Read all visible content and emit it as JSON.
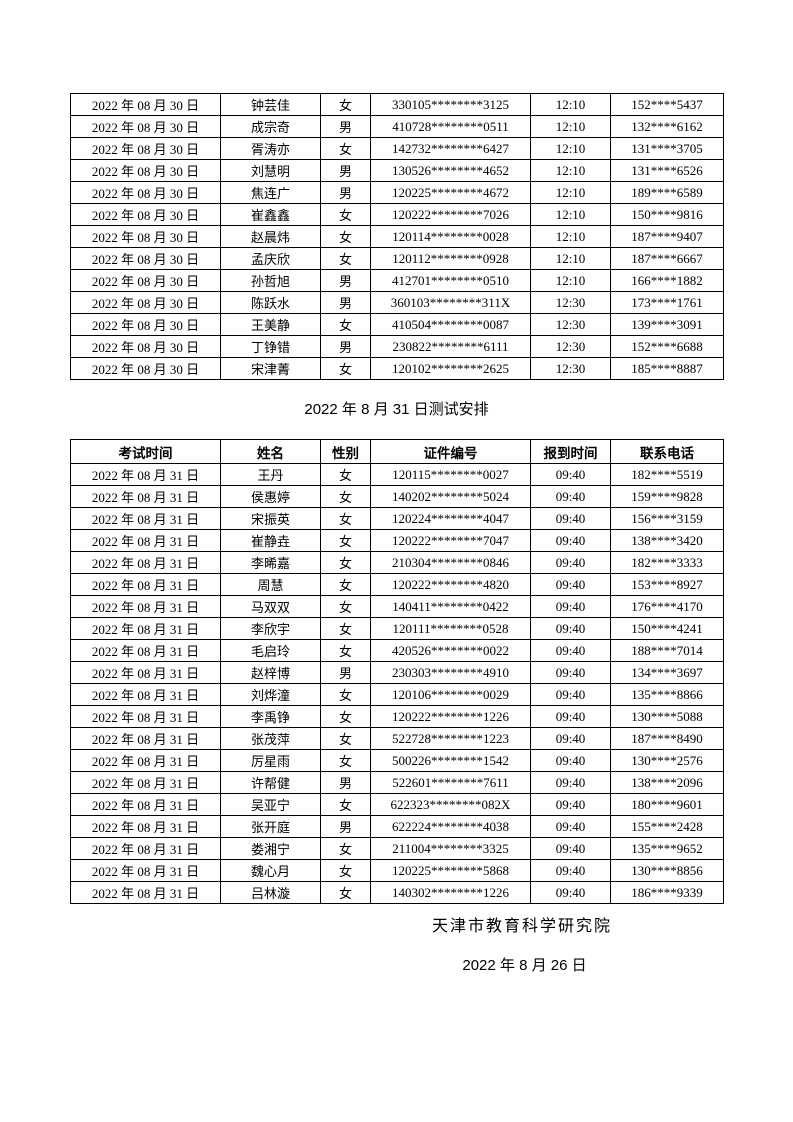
{
  "title": "2022 年 8 月 31 日测试安排",
  "footer": {
    "org": "天津市教育科学研究院",
    "date": "2022 年 8 月 26 日"
  },
  "table_aug30": {
    "rows": [
      {
        "date": "2022 年 08 月 30 日",
        "name": "钟芸佳",
        "gender": "女",
        "id_number": "330105********3125",
        "report_time": "12:10",
        "phone": "152****5437"
      },
      {
        "date": "2022 年 08 月 30 日",
        "name": "成宗奇",
        "gender": "男",
        "id_number": "410728********0511",
        "report_time": "12:10",
        "phone": "132****6162"
      },
      {
        "date": "2022 年 08 月 30 日",
        "name": "胥涛亦",
        "gender": "女",
        "id_number": "142732********6427",
        "report_time": "12:10",
        "phone": "131****3705"
      },
      {
        "date": "2022 年 08 月 30 日",
        "name": "刘慧明",
        "gender": "男",
        "id_number": "130526********4652",
        "report_time": "12:10",
        "phone": "131****6526"
      },
      {
        "date": "2022 年 08 月 30 日",
        "name": "焦连广",
        "gender": "男",
        "id_number": "120225********4672",
        "report_time": "12:10",
        "phone": "189****6589"
      },
      {
        "date": "2022 年 08 月 30 日",
        "name": "崔鑫鑫",
        "gender": "女",
        "id_number": "120222********7026",
        "report_time": "12:10",
        "phone": "150****9816"
      },
      {
        "date": "2022 年 08 月 30 日",
        "name": "赵晨炜",
        "gender": "女",
        "id_number": "120114********0028",
        "report_time": "12:10",
        "phone": "187****9407"
      },
      {
        "date": "2022 年 08 月 30 日",
        "name": "孟庆欣",
        "gender": "女",
        "id_number": "120112********0928",
        "report_time": "12:10",
        "phone": "187****6667"
      },
      {
        "date": "2022 年 08 月 30 日",
        "name": "孙哲旭",
        "gender": "男",
        "id_number": "412701********0510",
        "report_time": "12:10",
        "phone": "166****1882"
      },
      {
        "date": "2022 年 08 月 30 日",
        "name": "陈跃水",
        "gender": "男",
        "id_number": "360103********311X",
        "report_time": "12:30",
        "phone": "173****1761"
      },
      {
        "date": "2022 年 08 月 30 日",
        "name": "王美静",
        "gender": "女",
        "id_number": "410504********0087",
        "report_time": "12:30",
        "phone": "139****3091"
      },
      {
        "date": "2022 年 08 月 30 日",
        "name": "丁铮错",
        "gender": "男",
        "id_number": "230822********6111",
        "report_time": "12:30",
        "phone": "152****6688"
      },
      {
        "date": "2022 年 08 月 30 日",
        "name": "宋津菁",
        "gender": "女",
        "id_number": "120102********2625",
        "report_time": "12:30",
        "phone": "185****8887"
      }
    ]
  },
  "table_aug31": {
    "headers": [
      "考试时间",
      "姓名",
      "性别",
      "证件编号",
      "报到时间",
      "联系电话"
    ],
    "rows": [
      {
        "date": "2022 年 08 月 31 日",
        "name": "王丹",
        "gender": "女",
        "id_number": "120115********0027",
        "report_time": "09:40",
        "phone": "182****5519"
      },
      {
        "date": "2022 年 08 月 31 日",
        "name": "侯惠婷",
        "gender": "女",
        "id_number": "140202********5024",
        "report_time": "09:40",
        "phone": "159****9828"
      },
      {
        "date": "2022 年 08 月 31 日",
        "name": "宋振英",
        "gender": "女",
        "id_number": "120224********4047",
        "report_time": "09:40",
        "phone": "156****3159"
      },
      {
        "date": "2022 年 08 月 31 日",
        "name": "崔静垚",
        "gender": "女",
        "id_number": "120222********7047",
        "report_time": "09:40",
        "phone": "138****3420"
      },
      {
        "date": "2022 年 08 月 31 日",
        "name": "李晞嘉",
        "gender": "女",
        "id_number": "210304********0846",
        "report_time": "09:40",
        "phone": "182****3333"
      },
      {
        "date": "2022 年 08 月 31 日",
        "name": "周慧",
        "gender": "女",
        "id_number": "120222********4820",
        "report_time": "09:40",
        "phone": "153****8927"
      },
      {
        "date": "2022 年 08 月 31 日",
        "name": "马双双",
        "gender": "女",
        "id_number": "140411********0422",
        "report_time": "09:40",
        "phone": "176****4170"
      },
      {
        "date": "2022 年 08 月 31 日",
        "name": "李欣宇",
        "gender": "女",
        "id_number": "120111********0528",
        "report_time": "09:40",
        "phone": "150****4241"
      },
      {
        "date": "2022 年 08 月 31 日",
        "name": "毛启玲",
        "gender": "女",
        "id_number": "420526********0022",
        "report_time": "09:40",
        "phone": "188****7014"
      },
      {
        "date": "2022 年 08 月 31 日",
        "name": "赵梓博",
        "gender": "男",
        "id_number": "230303********4910",
        "report_time": "09:40",
        "phone": "134****3697"
      },
      {
        "date": "2022 年 08 月 31 日",
        "name": "刘烨潼",
        "gender": "女",
        "id_number": "120106********0029",
        "report_time": "09:40",
        "phone": "135****8866"
      },
      {
        "date": "2022 年 08 月 31 日",
        "name": "李禹铮",
        "gender": "女",
        "id_number": "120222********1226",
        "report_time": "09:40",
        "phone": "130****5088"
      },
      {
        "date": "2022 年 08 月 31 日",
        "name": "张茂萍",
        "gender": "女",
        "id_number": "522728********1223",
        "report_time": "09:40",
        "phone": "187****8490"
      },
      {
        "date": "2022 年 08 月 31 日",
        "name": "厉星雨",
        "gender": "女",
        "id_number": "500226********1542",
        "report_time": "09:40",
        "phone": "130****2576"
      },
      {
        "date": "2022 年 08 月 31 日",
        "name": "许帮健",
        "gender": "男",
        "id_number": "522601********7611",
        "report_time": "09:40",
        "phone": "138****2096"
      },
      {
        "date": "2022 年 08 月 31 日",
        "name": "吴亚宁",
        "gender": "女",
        "id_number": "622323********082X",
        "report_time": "09:40",
        "phone": "180****9601"
      },
      {
        "date": "2022 年 08 月 31 日",
        "name": "张开庭",
        "gender": "男",
        "id_number": "622224********4038",
        "report_time": "09:40",
        "phone": "155****2428"
      },
      {
        "date": "2022 年 08 月 31 日",
        "name": "娄湘宁",
        "gender": "女",
        "id_number": "211004********3325",
        "report_time": "09:40",
        "phone": "135****9652"
      },
      {
        "date": "2022 年 08 月 31 日",
        "name": "魏心月",
        "gender": "女",
        "id_number": "120225********5868",
        "report_time": "09:40",
        "phone": "130****8856"
      },
      {
        "date": "2022 年 08 月 31 日",
        "name": "吕林漩",
        "gender": "女",
        "id_number": "140302********1226",
        "report_time": "09:40",
        "phone": "186****9339"
      }
    ]
  }
}
